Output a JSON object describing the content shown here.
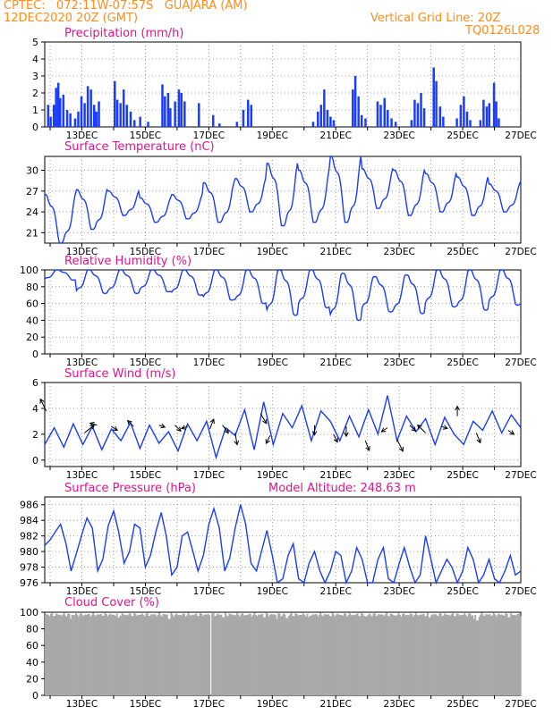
{
  "header": {
    "line1": "CPTEC:   072:11W-07:57S   GUAJARA (AM)",
    "line2": "12DEC2020 20Z (GMT)",
    "grid_note": "Vertical Grid Line: 20Z",
    "code": "TQ0126L028"
  },
  "colors": {
    "header": "#ff8c1a",
    "title": "#e0148c",
    "line": "#1a3cff",
    "bar": "#1a3cff",
    "cloud": "#a9a9a9"
  },
  "x_ticks": [
    "13DEC",
    "15DEC",
    "17DEC",
    "19DEC",
    "21DEC",
    "23DEC",
    "25DEC",
    "27DEC"
  ],
  "chart_data": [
    {
      "type": "bar",
      "title": "Precipitation (mm/h)",
      "ylim": [
        0,
        5
      ],
      "yticks": [
        "0",
        "1",
        "2",
        "3",
        "4",
        "5"
      ],
      "x_unit": "days since 12DEC2020 20Z",
      "values_note": "hourly bars",
      "events": [
        [
          0.1,
          1.3
        ],
        [
          0.18,
          0.6
        ],
        [
          0.28,
          1.3
        ],
        [
          0.35,
          2.3
        ],
        [
          0.42,
          2.6
        ],
        [
          0.48,
          1.7
        ],
        [
          0.58,
          1.9
        ],
        [
          0.7,
          1.0
        ],
        [
          0.8,
          0.8
        ],
        [
          0.95,
          0.5
        ],
        [
          1.05,
          0.9
        ],
        [
          1.15,
          1.8
        ],
        [
          1.25,
          1.4
        ],
        [
          1.35,
          2.4
        ],
        [
          1.45,
          2.2
        ],
        [
          1.55,
          1.3
        ],
        [
          1.62,
          0.9
        ],
        [
          1.7,
          1.5
        ],
        [
          2.2,
          2.7
        ],
        [
          2.28,
          1.6
        ],
        [
          2.38,
          1.4
        ],
        [
          2.48,
          2.2
        ],
        [
          2.58,
          1.3
        ],
        [
          2.7,
          0.9
        ],
        [
          2.82,
          0.4
        ],
        [
          3.0,
          0.6
        ],
        [
          3.25,
          0.3
        ],
        [
          3.7,
          2.5
        ],
        [
          3.78,
          1.8
        ],
        [
          3.88,
          2.0
        ],
        [
          3.95,
          1.1
        ],
        [
          4.1,
          1.5
        ],
        [
          4.22,
          2.2
        ],
        [
          4.3,
          2.0
        ],
        [
          4.4,
          1.5
        ],
        [
          4.85,
          1.4
        ],
        [
          5.3,
          0.7
        ],
        [
          5.5,
          0.2
        ],
        [
          6.05,
          0.3
        ],
        [
          6.25,
          1.0
        ],
        [
          6.4,
          1.6
        ],
        [
          6.5,
          1.3
        ],
        [
          8.45,
          0.3
        ],
        [
          8.6,
          0.9
        ],
        [
          8.7,
          1.3
        ],
        [
          8.8,
          2.2
        ],
        [
          8.9,
          1.0
        ],
        [
          9.0,
          0.6
        ],
        [
          9.1,
          0.4
        ],
        [
          9.7,
          2.2
        ],
        [
          9.78,
          3.0
        ],
        [
          9.88,
          1.8
        ],
        [
          9.98,
          0.7
        ],
        [
          10.1,
          0.5
        ],
        [
          10.48,
          1.5
        ],
        [
          10.58,
          1.3
        ],
        [
          10.7,
          1.7
        ],
        [
          10.8,
          1.0
        ],
        [
          10.92,
          0.5
        ],
        [
          11.05,
          0.3
        ],
        [
          11.55,
          0.4
        ],
        [
          11.65,
          1.6
        ],
        [
          11.75,
          1.4
        ],
        [
          11.85,
          2.0
        ],
        [
          11.95,
          1.1
        ],
        [
          12.25,
          3.5
        ],
        [
          12.33,
          2.7
        ],
        [
          12.45,
          1.2
        ],
        [
          12.55,
          0.6
        ],
        [
          12.98,
          0.5
        ],
        [
          13.1,
          1.3
        ],
        [
          13.2,
          1.8
        ],
        [
          13.3,
          0.9
        ],
        [
          13.4,
          0.4
        ],
        [
          13.72,
          0.4
        ],
        [
          13.82,
          1.6
        ],
        [
          13.92,
          1.2
        ],
        [
          14.0,
          1.4
        ],
        [
          14.15,
          2.6
        ],
        [
          14.22,
          1.5
        ],
        [
          14.3,
          0.5
        ]
      ]
    },
    {
      "type": "line",
      "title": "Surface Temperature (nC)",
      "ylim": [
        19.5,
        32
      ],
      "yticks": [
        "21",
        "24",
        "27",
        "30"
      ],
      "ytick_values": [
        21,
        24,
        27,
        30
      ],
      "min_hour": 9.5,
      "max_hour": 18.8,
      "days": [
        [
          19.5,
          26.5
        ],
        [
          21.5,
          27.2
        ],
        [
          23.5,
          27.0
        ],
        [
          22.5,
          26.0
        ],
        [
          23.0,
          26.5
        ],
        [
          22.5,
          28.2
        ],
        [
          24.0,
          28.8
        ],
        [
          22.0,
          31.0
        ],
        [
          22.5,
          30.0
        ],
        [
          22.5,
          32.0
        ],
        [
          24.5,
          30.2
        ],
        [
          23.5,
          30.0
        ],
        [
          24.0,
          29.5
        ],
        [
          23.5,
          29.0
        ],
        [
          24.0,
          28.0
        ],
        [
          23.5,
          28.5
        ],
        [
          23.5,
          28.0
        ]
      ]
    },
    {
      "type": "line",
      "title": "Relative Humidity (%)",
      "ylim": [
        0,
        100
      ],
      "yticks": [
        "0",
        "20",
        "40",
        "60",
        "80",
        "100"
      ],
      "ytick_values": [
        0,
        20,
        40,
        60,
        80,
        100
      ],
      "min_hour": 18.8,
      "max_hour": 9.5,
      "days": [
        [
          88,
          100
        ],
        [
          72,
          100
        ],
        [
          72,
          100
        ],
        [
          74,
          100
        ],
        [
          70,
          100
        ],
        [
          64,
          100
        ],
        [
          60,
          100
        ],
        [
          46,
          100
        ],
        [
          55,
          100
        ],
        [
          40,
          96
        ],
        [
          50,
          92
        ],
        [
          48,
          94
        ],
        [
          56,
          100
        ],
        [
          52,
          100
        ],
        [
          58,
          100
        ],
        [
          55,
          100
        ],
        [
          65,
          100
        ]
      ]
    },
    {
      "type": "line",
      "title": "Surface Wind (m/s)",
      "ylim": [
        -0.5,
        6
      ],
      "yticks": [
        "0",
        "2",
        "4",
        "6"
      ],
      "ytick_values": [
        0,
        2,
        4,
        6
      ],
      "x": [
        0,
        0.3,
        0.6,
        0.9,
        1.2,
        1.5,
        1.8,
        2.1,
        2.4,
        2.7,
        3.0,
        3.3,
        3.6,
        3.9,
        4.2,
        4.5,
        4.8,
        5.1,
        5.4,
        5.7,
        6.0,
        6.3,
        6.6,
        6.9,
        7.2,
        7.5,
        7.8,
        8.1,
        8.4,
        8.7,
        9.0,
        9.3,
        9.6,
        9.9,
        10.2,
        10.5,
        10.8,
        11.1,
        11.4,
        11.7,
        12.0,
        12.3,
        12.6,
        12.9,
        13.2,
        13.5,
        13.8,
        14.1,
        14.4,
        14.7,
        15.0
      ],
      "y": [
        1.2,
        2.5,
        1.0,
        2.8,
        1.2,
        2.6,
        0.8,
        2.4,
        1.5,
        2.9,
        0.9,
        2.7,
        1.3,
        2.2,
        0.7,
        2.8,
        1.5,
        3.0,
        0.2,
        2.5,
        1.9,
        3.9,
        0.8,
        4.5,
        1.2,
        3.6,
        2.5,
        4.2,
        1.5,
        3.8,
        3.0,
        1.5,
        3.4,
        1.8,
        3.9,
        2.0,
        5.0,
        1.5,
        3.4,
        2.2,
        3.2,
        1.2,
        3.3,
        2.0,
        1.2,
        3.0,
        2.3,
        3.8,
        2.1,
        3.5,
        2.5
      ],
      "arrows": [
        [
          0.05,
          3.8,
          -0.3,
          0.6
        ],
        [
          1.25,
          2.1,
          0.5,
          0.4
        ],
        [
          1.65,
          2.7,
          -0.35,
          0.1
        ],
        [
          2.1,
          2.6,
          0.3,
          -0.2
        ],
        [
          2.8,
          2.6,
          -0.3,
          0.3
        ],
        [
          3.6,
          2.7,
          0.3,
          -0.1
        ],
        [
          4.1,
          2.7,
          0.3,
          -0.3
        ],
        [
          4.5,
          2.6,
          -0.3,
          -0.1
        ],
        [
          5.2,
          2.4,
          0.2,
          0.5
        ],
        [
          5.6,
          2.7,
          0.3,
          -0.4
        ],
        [
          6.0,
          2.1,
          0.1,
          -0.6
        ],
        [
          6.8,
          3.6,
          0.3,
          -0.5
        ],
        [
          7.1,
          1.9,
          -0.2,
          -0.4
        ],
        [
          8.5,
          2.7,
          0.0,
          -0.5
        ],
        [
          9.1,
          2.0,
          0.2,
          -0.4
        ],
        [
          9.5,
          2.6,
          0.0,
          -0.5
        ],
        [
          10.1,
          1.5,
          0.2,
          -0.5
        ],
        [
          10.8,
          2.5,
          -0.3,
          -0.2
        ],
        [
          11.1,
          1.6,
          0.3,
          -0.6
        ],
        [
          11.5,
          2.7,
          0.3,
          -0.3
        ],
        [
          12.0,
          2.1,
          -0.4,
          0.4
        ],
        [
          12.5,
          2.6,
          0.3,
          -0.1
        ],
        [
          13.0,
          3.4,
          0.0,
          0.5
        ],
        [
          13.6,
          2.1,
          0.2,
          -0.5
        ],
        [
          14.6,
          2.3,
          0.3,
          -0.2
        ]
      ]
    },
    {
      "type": "line",
      "title": "Surface Pressure (hPa)",
      "note": "Model Altitude: 248.63 m",
      "ylim": [
        976,
        987
      ],
      "yticks": [
        "976",
        "978",
        "980",
        "982",
        "984",
        "986"
      ],
      "ytick_values": [
        976,
        978,
        980,
        982,
        984,
        986
      ],
      "min_hour": 4,
      "max_hour": 13.5,
      "x": [
        0,
        0.17,
        0.33,
        0.5,
        0.67,
        0.83,
        1.0,
        1.17,
        1.33,
        1.5,
        1.67,
        1.83,
        2.0,
        2.17,
        2.33,
        2.5,
        2.67,
        2.83,
        3.0,
        3.17,
        3.33,
        3.5,
        3.67,
        3.83,
        4.0,
        4.17,
        4.33,
        4.5,
        4.67,
        4.83,
        5.0,
        5.17,
        5.33,
        5.5,
        5.67,
        5.83,
        6.0,
        6.17,
        6.33,
        6.5,
        6.67,
        6.83,
        7.0,
        7.17,
        7.33,
        7.5,
        7.67,
        7.83,
        8.0,
        8.17,
        8.33,
        8.5,
        8.67,
        8.83,
        9.0,
        9.17,
        9.33,
        9.5,
        9.67,
        9.83,
        10.0,
        10.17,
        10.33,
        10.5,
        10.67,
        10.83,
        11.0,
        11.17,
        11.33,
        11.5,
        11.67,
        11.83,
        12.0,
        12.17,
        12.33,
        12.5,
        12.67,
        12.83,
        13.0,
        13.17,
        13.33,
        13.5,
        13.67,
        13.83,
        14.0,
        14.17,
        14.33,
        14.5,
        14.67,
        14.83,
        15.0
      ],
      "y": [
        980.8,
        981.5,
        982.5,
        983.5,
        981.0,
        977.5,
        979.8,
        982.2,
        984.3,
        983.0,
        977.5,
        979.0,
        983.3,
        985.2,
        982.5,
        978.5,
        980.0,
        983.5,
        983.0,
        978.0,
        979.5,
        982.5,
        985.0,
        982.0,
        977.0,
        978.0,
        982.0,
        982.5,
        980.0,
        977.5,
        979.5,
        983.5,
        985.5,
        983.0,
        977.5,
        979.2,
        983.0,
        986.0,
        983.5,
        978.5,
        977.5,
        980.0,
        982.7,
        979.5,
        976.0,
        976.5,
        979.5,
        981.0,
        976.5,
        976.0,
        978.5,
        980.0,
        977.5,
        975.5,
        977.5,
        980.0,
        979.5,
        976.0,
        977.5,
        980.5,
        979.0,
        976.0,
        976.0,
        979.0,
        980.5,
        976.5,
        976.0,
        978.5,
        980.5,
        978.0,
        976.0,
        977.0,
        982.0,
        979.0,
        976.0,
        977.5,
        979.0,
        978.0,
        976.0,
        977.5,
        980.5,
        979.0,
        976.0,
        977.0,
        979.0,
        976.5,
        976.0,
        977.5,
        979.5,
        977.0,
        977.5
      ]
    },
    {
      "type": "area",
      "title": "Cloud Cover (%)",
      "ylim": [
        0,
        100
      ],
      "yticks": [
        "0",
        "20",
        "40",
        "60",
        "80",
        "100"
      ],
      "ytick_values": [
        0,
        20,
        40,
        60,
        80,
        100
      ],
      "base_value": 97,
      "dips": [
        [
          5.2,
          0
        ],
        [
          5.21,
          0
        ],
        [
          0.8,
          92
        ],
        [
          2.3,
          93
        ],
        [
          3.9,
          92
        ],
        [
          5.6,
          94
        ],
        [
          6.9,
          94
        ],
        [
          7.3,
          92
        ],
        [
          7.6,
          93
        ],
        [
          8.3,
          94
        ],
        [
          9.0,
          95
        ],
        [
          10.1,
          95
        ],
        [
          11.0,
          96
        ],
        [
          12.1,
          94
        ],
        [
          13.5,
          92
        ],
        [
          13.6,
          90
        ],
        [
          14.6,
          94
        ]
      ]
    }
  ]
}
